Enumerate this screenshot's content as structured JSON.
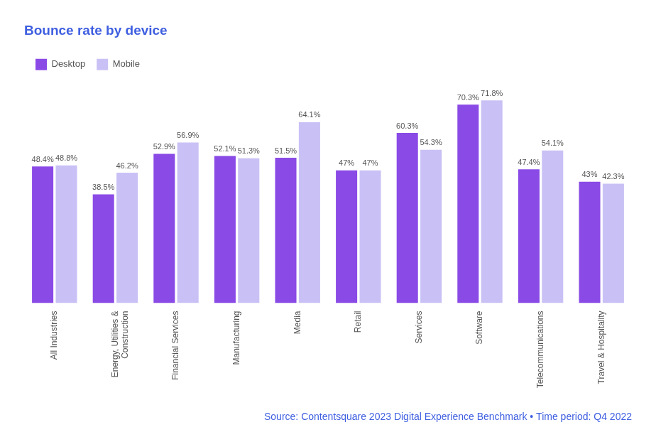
{
  "chart_data": {
    "type": "bar",
    "title": "Bounce rate by device",
    "source": "Source: Contentsquare 2023 Digital Experience Benchmark • Time period: Q4 2022",
    "categories": [
      "All Industries",
      "Energy, Utilities & Construction",
      "Financial Services",
      "Manufacturing",
      "Media",
      "Retail",
      "Services",
      "Software",
      "Telecommunications",
      "Travel & Hospitality"
    ],
    "series": [
      {
        "name": "Desktop",
        "color": "#8a4ae6",
        "values": [
          48.4,
          38.5,
          52.9,
          52.1,
          51.5,
          47,
          60.3,
          70.3,
          47.4,
          43
        ],
        "value_labels": [
          "48.4%",
          "38.5%",
          "52.9%",
          "52.1%",
          "51.5%",
          "47%",
          "60.3%",
          "70.3%",
          "47.4%",
          "43%"
        ]
      },
      {
        "name": "Mobile",
        "color": "#c9c1f5",
        "values": [
          48.8,
          46.2,
          56.9,
          51.3,
          64.1,
          47,
          54.3,
          71.8,
          54.1,
          42.3
        ],
        "value_labels": [
          "48.8%",
          "46.2%",
          "56.9%",
          "51.3%",
          "64.1%",
          "47%",
          "54.3%",
          "71.8%",
          "54.1%",
          "42.3%"
        ]
      }
    ],
    "legend": "top-left",
    "grid": false,
    "data_labels": true,
    "tick_labels": "x"
  }
}
